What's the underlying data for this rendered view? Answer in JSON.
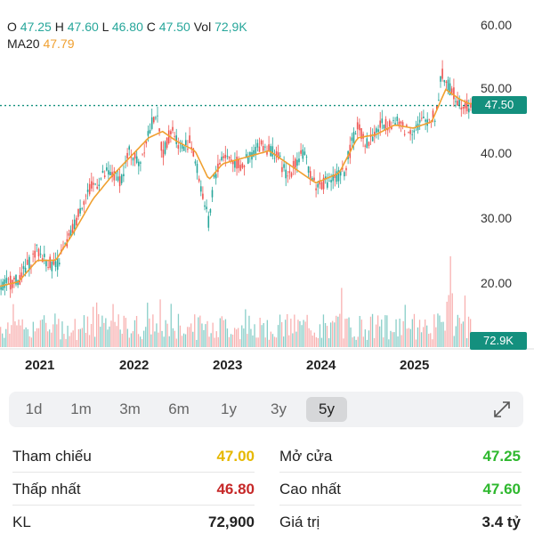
{
  "ohlc": {
    "o_label": "O",
    "o_value": "47.25",
    "h_label": "H",
    "h_value": "47.60",
    "l_label": "L",
    "l_value": "46.80",
    "c_label": "C",
    "c_value": "47.50",
    "vol_label": "Vol",
    "vol_value": "72,9K"
  },
  "ma": {
    "label": "MA20",
    "value": "47.79"
  },
  "price_tag": "47.50",
  "volume_tag": "72.9K",
  "tabs": [
    {
      "label": "1d"
    },
    {
      "label": "1m"
    },
    {
      "label": "3m"
    },
    {
      "label": "6m"
    },
    {
      "label": "1y"
    },
    {
      "label": "3y"
    },
    {
      "label": "5y"
    }
  ],
  "active_tab": "5y",
  "stats": {
    "ref_label": "Tham chiếu",
    "ref_value": "47.00",
    "open_label": "Mở cửa",
    "open_value": "47.25",
    "low_label": "Thấp nhất",
    "low_value": "46.80",
    "high_label": "Cao nhất",
    "high_value": "47.60",
    "vol_label": "KL",
    "vol_value": "72,900",
    "value_label": "Giá trị",
    "value_value": "3.4 tỷ"
  },
  "colors": {
    "up": "#26a69a",
    "down": "#ef5350",
    "ma": "#f0a030",
    "ref": "#e6b800",
    "low": "#c62828",
    "high": "#2eb82e"
  },
  "chart_data": {
    "type": "line",
    "x_tick_labels": [
      "2021",
      "2022",
      "2023",
      "2024",
      "2025"
    ],
    "y_tick_labels": [
      "60.00",
      "50.00",
      "40.00",
      "30.00",
      "20.00"
    ],
    "ylim": [
      14,
      61
    ],
    "current_price": 47.5,
    "series": [
      {
        "name": "",
        "x": [
          2020.6,
          2020.8,
          2021.0,
          2021.1,
          2021.2,
          2021.35,
          2021.5,
          2021.6,
          2021.75,
          2021.9,
          2022.0,
          2022.1,
          2022.2,
          2022.28,
          2022.35,
          2022.45,
          2022.55,
          2022.65,
          2022.75,
          2022.85,
          2022.9,
          2023.0,
          2023.2,
          2023.4,
          2023.55,
          2023.7,
          2023.85,
          2024.0,
          2024.15,
          2024.3,
          2024.45,
          2024.55,
          2024.7,
          2024.85,
          2025.0,
          2025.15,
          2025.3,
          2025.35,
          2025.45,
          2025.55,
          2025.65
        ],
        "values": [
          19.5,
          20.5,
          25.0,
          23.5,
          22.5,
          27.0,
          33.0,
          35.0,
          37.0,
          36.0,
          40.5,
          38.5,
          43.5,
          46.5,
          40.0,
          44.0,
          41.0,
          42.0,
          36.0,
          29.0,
          36.0,
          40.0,
          38.0,
          41.5,
          40.5,
          36.5,
          40.5,
          35.0,
          36.0,
          37.0,
          44.5,
          41.5,
          44.5,
          45.0,
          43.5,
          45.0,
          46.0,
          52.5,
          50.0,
          48.0,
          47.5
        ]
      },
      {
        "name": "MA20",
        "x": [
          2020.6,
          2020.8,
          2021.0,
          2021.2,
          2021.4,
          2021.6,
          2021.8,
          2022.0,
          2022.2,
          2022.35,
          2022.5,
          2022.7,
          2022.85,
          2023.0,
          2023.25,
          2023.5,
          2023.75,
          2024.0,
          2024.25,
          2024.45,
          2024.65,
          2024.85,
          2025.05,
          2025.25,
          2025.4,
          2025.55,
          2025.65
        ],
        "values": [
          19.5,
          20.2,
          23.5,
          23.5,
          28.0,
          33.0,
          36.5,
          39.5,
          42.5,
          43.5,
          42.0,
          40.5,
          36.0,
          38.5,
          39.5,
          40.5,
          38.0,
          35.5,
          37.0,
          42.5,
          43.0,
          44.5,
          44.0,
          45.0,
          50.0,
          48.5,
          47.8
        ]
      }
    ]
  }
}
